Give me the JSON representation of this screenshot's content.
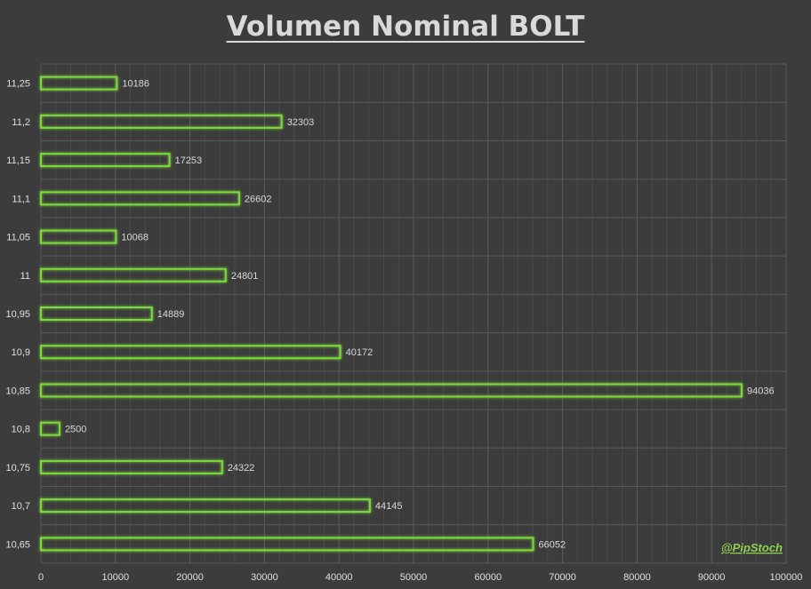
{
  "chart_data": {
    "type": "bar",
    "orientation": "horizontal",
    "title": "Volumen Nominal BOLT",
    "categories": [
      "11,25",
      "11,2",
      "11,15",
      "11,1",
      "11,05",
      "11",
      "10,95",
      "10,9",
      "10,85",
      "10,8",
      "10,75",
      "10,7",
      "10,65"
    ],
    "values": [
      10186,
      32303,
      17253,
      26602,
      10068,
      24801,
      14889,
      40172,
      94036,
      2500,
      24322,
      44145,
      66052
    ],
    "data_labels": [
      "10186",
      "32303",
      "17253",
      "26602",
      "10068",
      "24801",
      "14889",
      "40172",
      "94036",
      "2500",
      "24322",
      "44145",
      "66052"
    ],
    "xlim": [
      0,
      100000
    ],
    "xticks": [
      0,
      10000,
      20000,
      30000,
      40000,
      50000,
      60000,
      70000,
      80000,
      90000,
      100000
    ],
    "xtick_labels": [
      "0",
      "10000",
      "20000",
      "30000",
      "40000",
      "50000",
      "60000",
      "70000",
      "80000",
      "90000",
      "100000"
    ],
    "xlabel": "",
    "ylabel": "",
    "grid": true,
    "legend": "none",
    "colors": {
      "bar_outline": "#7cd83c",
      "background": "#3c3c3c"
    }
  },
  "watermark": "@PipStoch"
}
